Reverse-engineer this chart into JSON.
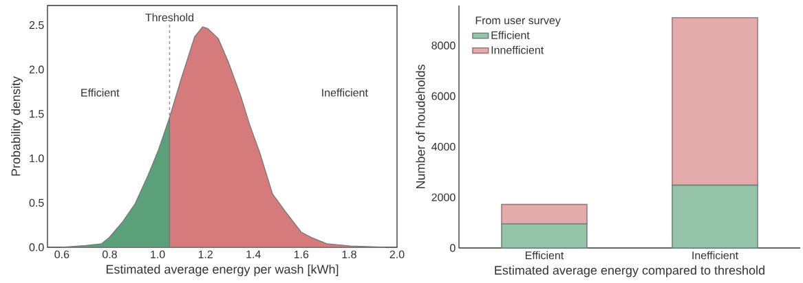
{
  "chart_data": [
    {
      "type": "area",
      "xlabel": "Estimated average energy per wash [kWh]",
      "ylabel": "Probability density",
      "series": [
        {
          "color": "#5aa17a",
          "x": [
            0.6,
            0.7,
            0.766,
            0.798,
            0.852,
            0.906,
            0.96,
            1.004,
            1.05
          ],
          "values": [
            0,
            0.02,
            0.04,
            0.11,
            0.28,
            0.49,
            0.81,
            1.1,
            1.46
          ]
        },
        {
          "color": "#d67b7b",
          "x": [
            1.05,
            1.1,
            1.155,
            1.188,
            1.21,
            1.253,
            1.296,
            1.35,
            1.383,
            1.426,
            1.48,
            1.534,
            1.6,
            1.643,
            1.707,
            1.805,
            1.935,
            1.95
          ],
          "values": [
            1.46,
            1.91,
            2.37,
            2.48,
            2.46,
            2.35,
            2.08,
            1.68,
            1.39,
            1.07,
            0.6,
            0.4,
            0.17,
            0.11,
            0.04,
            0.015,
            0.003,
            0
          ]
        }
      ],
      "xlim": [
        0.54,
        2.0
      ],
      "ylim": [
        0,
        2.72
      ],
      "xticks": [
        0.6,
        0.8,
        {
          "value": 1,
          "label": "1.0"
        },
        1.2,
        1.4,
        1.6,
        1.8,
        {
          "value": 2,
          "label": "2.0"
        }
      ],
      "yticks": [
        {
          "value": 0,
          "label": "0.0"
        },
        0.5,
        {
          "value": 1,
          "label": "1.0"
        },
        1.5,
        {
          "value": 2,
          "label": "2.0"
        },
        2.5
      ],
      "ref_lines": [
        {
          "axis": "x",
          "value": 1.05,
          "label": "Threshold",
          "color": "#999999",
          "line_style": "dashed"
        }
      ],
      "annotations": [
        "Efficient",
        "Inefficient"
      ]
    },
    {
      "type": "bar",
      "stacked": true,
      "categories": [
        "Efficient",
        "Inefficient"
      ],
      "xlabel": "Estimated average energy compared to threshold",
      "ylabel": "Number of houdeholds",
      "legend": "top left",
      "legend_title": "From user survey",
      "series": [
        {
          "name": "Efficient",
          "color": "#95c4aa",
          "values": [
            950,
            2480
          ]
        },
        {
          "name": "Innefficient",
          "color": "#e4abac",
          "values": [
            770,
            6620
          ]
        }
      ],
      "ylim": [
        0,
        9580
      ],
      "yticks": [
        0,
        2000,
        4000,
        6000,
        8000
      ]
    }
  ]
}
